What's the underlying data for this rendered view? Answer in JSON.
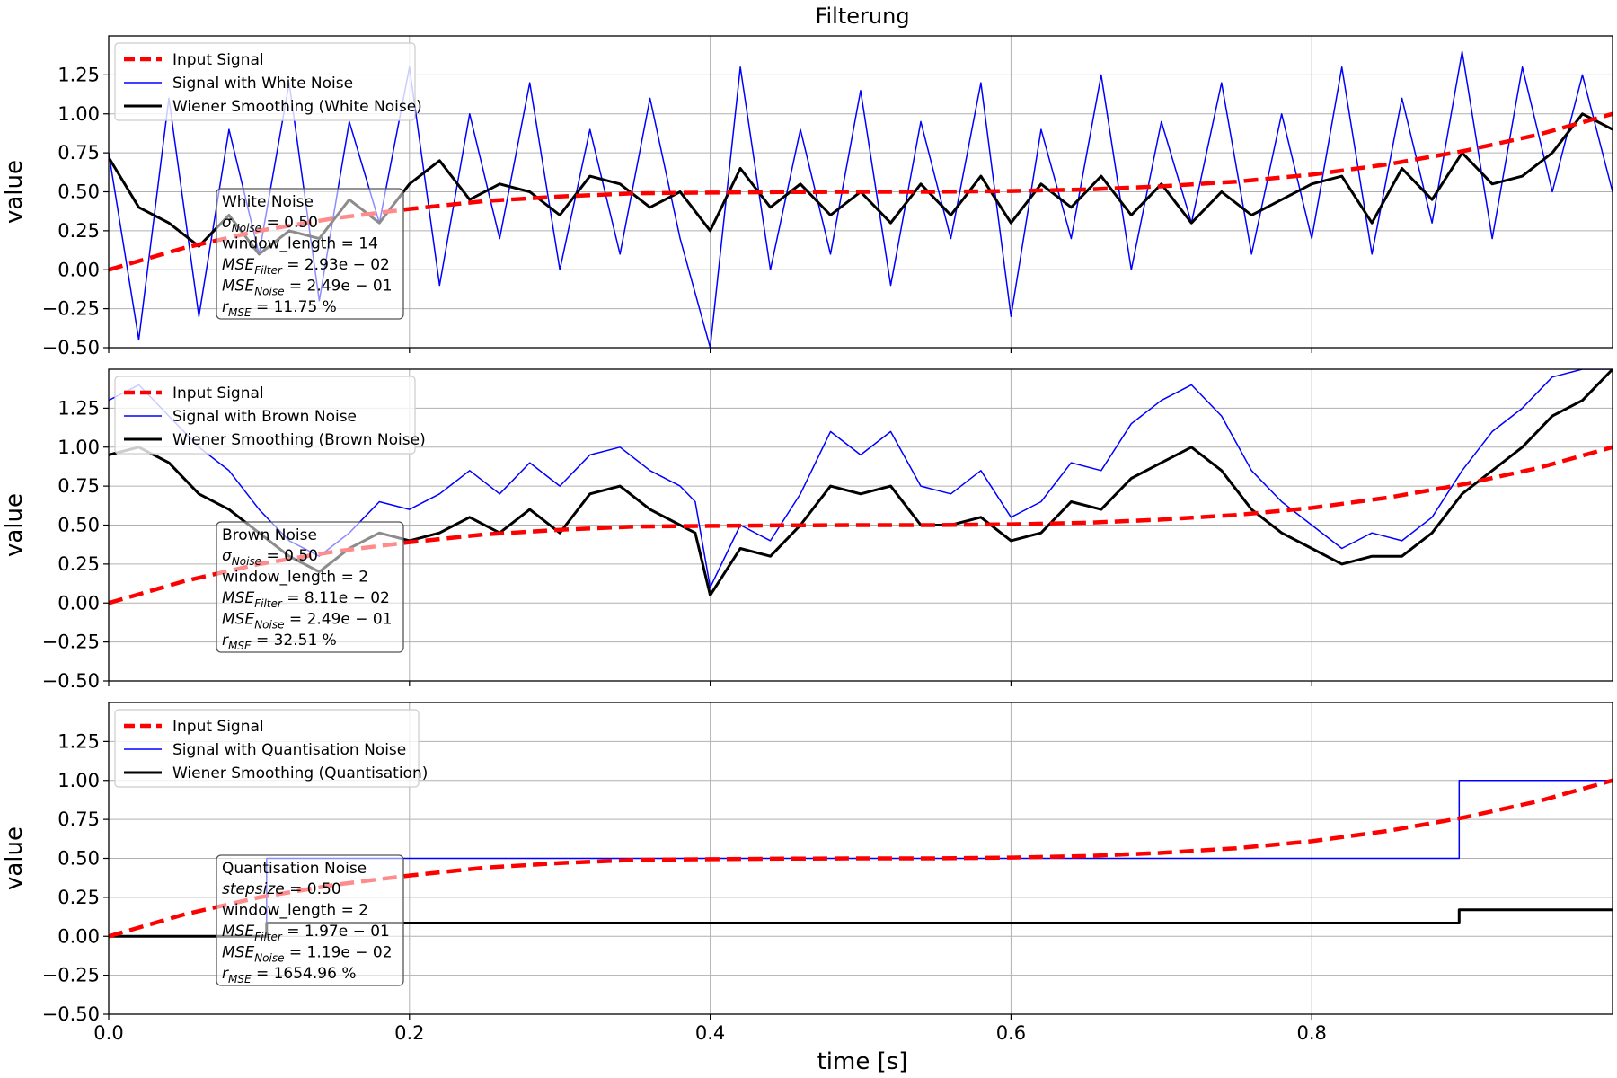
{
  "figure": {
    "title": "Filterung",
    "xlabel": "time [s]",
    "ylabel": "value"
  },
  "colors": {
    "input": "#ff0000",
    "noisy": "#0000ff",
    "filtered": "#000000",
    "grid": "#b0b0b0"
  },
  "chart_data": [
    {
      "type": "line",
      "xlim": [
        0,
        1.0
      ],
      "ylim": [
        -0.5,
        1.5
      ],
      "xticks": [
        "0.0",
        "0.2",
        "0.4",
        "0.6",
        "0.8"
      ],
      "xtick_values": [
        0,
        0.2,
        0.4,
        0.6,
        0.8
      ],
      "yticks": [
        "−0.50",
        "−0.25",
        "0.00",
        "0.25",
        "0.50",
        "0.75",
        "1.00",
        "1.25"
      ],
      "ytick_values": [
        -0.5,
        -0.25,
        0,
        0.25,
        0.5,
        0.75,
        1.0,
        1.25
      ],
      "grid": true,
      "xlabel": "",
      "ylabel": "value",
      "legend_position": "top-left",
      "legend": [
        "Input Signal",
        "Signal with White Noise",
        "Wiener Smoothing (White Noise)"
      ],
      "series": [
        {
          "name": "Input Signal",
          "style": "dashed",
          "color": "#ff0000",
          "x": [
            0,
            0.05,
            0.1,
            0.15,
            0.2,
            0.25,
            0.3,
            0.35,
            0.4,
            0.45,
            0.5,
            0.55,
            0.6,
            0.65,
            0.7,
            0.75,
            0.8,
            0.85,
            0.9,
            0.95,
            1.0
          ],
          "values": [
            0.0,
            0.14,
            0.25,
            0.33,
            0.39,
            0.44,
            0.47,
            0.49,
            0.495,
            0.498,
            0.5,
            0.5,
            0.505,
            0.515,
            0.535,
            0.565,
            0.61,
            0.675,
            0.76,
            0.865,
            1.0
          ]
        },
        {
          "name": "Signal with White Noise",
          "style": "solid",
          "color": "#0000ff",
          "x": [
            0,
            0.02,
            0.04,
            0.06,
            0.08,
            0.1,
            0.12,
            0.14,
            0.16,
            0.18,
            0.2,
            0.22,
            0.24,
            0.26,
            0.28,
            0.3,
            0.32,
            0.34,
            0.36,
            0.38,
            0.4,
            0.42,
            0.44,
            0.46,
            0.48,
            0.5,
            0.52,
            0.54,
            0.56,
            0.58,
            0.6,
            0.62,
            0.64,
            0.66,
            0.68,
            0.7,
            0.72,
            0.74,
            0.76,
            0.78,
            0.8,
            0.82,
            0.84,
            0.86,
            0.88,
            0.9,
            0.92,
            0.94,
            0.96,
            0.98,
            1.0
          ],
          "values": [
            0.75,
            -0.45,
            1.1,
            -0.3,
            0.9,
            0.1,
            1.2,
            -0.2,
            0.95,
            0.3,
            1.3,
            -0.1,
            1.0,
            0.2,
            1.2,
            0.0,
            0.9,
            0.1,
            1.1,
            0.2,
            -0.5,
            1.3,
            0.0,
            0.9,
            0.1,
            1.15,
            -0.1,
            0.95,
            0.2,
            1.2,
            -0.3,
            0.9,
            0.2,
            1.25,
            0.0,
            0.95,
            0.3,
            1.2,
            0.1,
            1.0,
            0.2,
            1.3,
            0.1,
            1.1,
            0.3,
            1.4,
            0.2,
            1.3,
            0.5,
            1.25,
            0.5
          ]
        },
        {
          "name": "Wiener Smoothing (White Noise)",
          "style": "solid",
          "color": "#000000",
          "x": [
            0,
            0.02,
            0.04,
            0.06,
            0.08,
            0.1,
            0.12,
            0.14,
            0.16,
            0.18,
            0.2,
            0.22,
            0.24,
            0.26,
            0.28,
            0.3,
            0.32,
            0.34,
            0.36,
            0.38,
            0.4,
            0.42,
            0.44,
            0.46,
            0.48,
            0.5,
            0.52,
            0.54,
            0.56,
            0.58,
            0.6,
            0.62,
            0.64,
            0.66,
            0.68,
            0.7,
            0.72,
            0.74,
            0.76,
            0.78,
            0.8,
            0.82,
            0.84,
            0.86,
            0.88,
            0.9,
            0.92,
            0.94,
            0.96,
            0.98,
            1.0
          ],
          "values": [
            0.72,
            0.4,
            0.3,
            0.15,
            0.35,
            0.1,
            0.25,
            0.2,
            0.45,
            0.3,
            0.55,
            0.7,
            0.45,
            0.55,
            0.5,
            0.35,
            0.6,
            0.55,
            0.4,
            0.5,
            0.25,
            0.65,
            0.4,
            0.55,
            0.35,
            0.5,
            0.3,
            0.55,
            0.35,
            0.6,
            0.3,
            0.55,
            0.4,
            0.6,
            0.35,
            0.55,
            0.3,
            0.5,
            0.35,
            0.45,
            0.55,
            0.6,
            0.3,
            0.65,
            0.45,
            0.75,
            0.55,
            0.6,
            0.75,
            1.0,
            0.9
          ]
        }
      ],
      "annotation": {
        "title": "White Noise",
        "lines": [
          {
            "main": "σ",
            "sub": "Noise",
            "rest": " = 0.50",
            "italic": true
          },
          {
            "main": "window_length = 14",
            "sub": "",
            "rest": "",
            "italic": false
          },
          {
            "main": "MSE",
            "sub": "Filter",
            "rest": " = 2.93e − 02",
            "italic": true
          },
          {
            "main": "MSE",
            "sub": "Noise",
            "rest": " = 2.49e − 01",
            "italic": true
          },
          {
            "main": "r",
            "sub": "MSE",
            "rest": " = 11.75 %",
            "italic": true
          }
        ]
      }
    },
    {
      "type": "line",
      "xlim": [
        0,
        1.0
      ],
      "ylim": [
        -0.5,
        1.5
      ],
      "xticks": [
        "0.0",
        "0.2",
        "0.4",
        "0.6",
        "0.8"
      ],
      "xtick_values": [
        0,
        0.2,
        0.4,
        0.6,
        0.8
      ],
      "yticks": [
        "−0.50",
        "−0.25",
        "0.00",
        "0.25",
        "0.50",
        "0.75",
        "1.00",
        "1.25"
      ],
      "ytick_values": [
        -0.5,
        -0.25,
        0,
        0.25,
        0.5,
        0.75,
        1.0,
        1.25
      ],
      "grid": true,
      "xlabel": "",
      "ylabel": "value",
      "legend_position": "top-left",
      "legend": [
        "Input Signal",
        "Signal with Brown Noise",
        "Wiener Smoothing (Brown Noise)"
      ],
      "series": [
        {
          "name": "Input Signal",
          "style": "dashed",
          "color": "#ff0000",
          "x": [
            0,
            0.05,
            0.1,
            0.15,
            0.2,
            0.25,
            0.3,
            0.35,
            0.4,
            0.45,
            0.5,
            0.55,
            0.6,
            0.65,
            0.7,
            0.75,
            0.8,
            0.85,
            0.9,
            0.95,
            1.0
          ],
          "values": [
            0.0,
            0.14,
            0.25,
            0.33,
            0.39,
            0.44,
            0.47,
            0.49,
            0.495,
            0.498,
            0.5,
            0.5,
            0.505,
            0.515,
            0.535,
            0.565,
            0.61,
            0.675,
            0.76,
            0.865,
            1.0
          ]
        },
        {
          "name": "Signal with Brown Noise",
          "style": "solid",
          "color": "#0000ff",
          "x": [
            0,
            0.02,
            0.04,
            0.06,
            0.08,
            0.1,
            0.12,
            0.14,
            0.16,
            0.18,
            0.2,
            0.22,
            0.24,
            0.26,
            0.28,
            0.3,
            0.32,
            0.34,
            0.36,
            0.38,
            0.39,
            0.4,
            0.42,
            0.44,
            0.46,
            0.48,
            0.5,
            0.52,
            0.54,
            0.56,
            0.58,
            0.6,
            0.62,
            0.64,
            0.66,
            0.68,
            0.7,
            0.72,
            0.74,
            0.76,
            0.78,
            0.8,
            0.82,
            0.84,
            0.86,
            0.88,
            0.9,
            0.92,
            0.94,
            0.96,
            0.98,
            1.0
          ],
          "values": [
            1.3,
            1.4,
            1.2,
            1.0,
            0.85,
            0.6,
            0.4,
            0.3,
            0.45,
            0.65,
            0.6,
            0.7,
            0.85,
            0.7,
            0.9,
            0.75,
            0.95,
            1.0,
            0.85,
            0.75,
            0.65,
            0.1,
            0.5,
            0.4,
            0.7,
            1.1,
            0.95,
            1.1,
            0.75,
            0.7,
            0.85,
            0.55,
            0.65,
            0.9,
            0.85,
            1.15,
            1.3,
            1.4,
            1.2,
            0.85,
            0.65,
            0.5,
            0.35,
            0.45,
            0.4,
            0.55,
            0.85,
            1.1,
            1.25,
            1.45,
            1.5,
            1.5
          ]
        },
        {
          "name": "Wiener Smoothing (Brown Noise)",
          "style": "solid",
          "color": "#000000",
          "x": [
            0,
            0.02,
            0.04,
            0.06,
            0.08,
            0.1,
            0.12,
            0.14,
            0.16,
            0.18,
            0.2,
            0.22,
            0.24,
            0.26,
            0.28,
            0.3,
            0.32,
            0.34,
            0.36,
            0.38,
            0.39,
            0.4,
            0.42,
            0.44,
            0.46,
            0.48,
            0.5,
            0.52,
            0.54,
            0.56,
            0.58,
            0.6,
            0.62,
            0.64,
            0.66,
            0.68,
            0.7,
            0.72,
            0.74,
            0.76,
            0.78,
            0.8,
            0.82,
            0.84,
            0.86,
            0.88,
            0.9,
            0.92,
            0.94,
            0.96,
            0.98,
            1.0
          ],
          "values": [
            0.95,
            1.0,
            0.9,
            0.7,
            0.6,
            0.45,
            0.3,
            0.2,
            0.35,
            0.45,
            0.4,
            0.45,
            0.55,
            0.45,
            0.6,
            0.45,
            0.7,
            0.75,
            0.6,
            0.5,
            0.45,
            0.05,
            0.35,
            0.3,
            0.5,
            0.75,
            0.7,
            0.75,
            0.5,
            0.5,
            0.55,
            0.4,
            0.45,
            0.65,
            0.6,
            0.8,
            0.9,
            1.0,
            0.85,
            0.6,
            0.45,
            0.35,
            0.25,
            0.3,
            0.3,
            0.45,
            0.7,
            0.85,
            1.0,
            1.2,
            1.3,
            1.5
          ]
        }
      ],
      "annotation": {
        "title": "Brown Noise",
        "lines": [
          {
            "main": "σ",
            "sub": "Noise",
            "rest": " = 0.50",
            "italic": true
          },
          {
            "main": "window_length = 2",
            "sub": "",
            "rest": "",
            "italic": false
          },
          {
            "main": "MSE",
            "sub": "Filter",
            "rest": " = 8.11e − 02",
            "italic": true
          },
          {
            "main": "MSE",
            "sub": "Noise",
            "rest": " = 2.49e − 01",
            "italic": true
          },
          {
            "main": "r",
            "sub": "MSE",
            "rest": " = 32.51 %",
            "italic": true
          }
        ]
      }
    },
    {
      "type": "line",
      "xlim": [
        0,
        1.0
      ],
      "ylim": [
        -0.5,
        1.5
      ],
      "xticks": [
        "0.0",
        "0.2",
        "0.4",
        "0.6",
        "0.8"
      ],
      "xtick_values": [
        0,
        0.2,
        0.4,
        0.6,
        0.8
      ],
      "yticks": [
        "−0.50",
        "−0.25",
        "0.00",
        "0.25",
        "0.50",
        "0.75",
        "1.00",
        "1.25"
      ],
      "ytick_values": [
        -0.5,
        -0.25,
        0,
        0.25,
        0.5,
        0.75,
        1.0,
        1.25
      ],
      "grid": true,
      "xlabel": "time [s]",
      "ylabel": "value",
      "legend_position": "top-left",
      "legend": [
        "Input Signal",
        "Signal with Quantisation Noise",
        "Wiener Smoothing (Quantisation)"
      ],
      "series": [
        {
          "name": "Input Signal",
          "style": "dashed",
          "color": "#ff0000",
          "x": [
            0,
            0.05,
            0.1,
            0.15,
            0.2,
            0.25,
            0.3,
            0.35,
            0.4,
            0.45,
            0.5,
            0.55,
            0.6,
            0.65,
            0.7,
            0.75,
            0.8,
            0.85,
            0.9,
            0.95,
            1.0
          ],
          "values": [
            0.0,
            0.14,
            0.25,
            0.33,
            0.39,
            0.44,
            0.47,
            0.49,
            0.495,
            0.498,
            0.5,
            0.5,
            0.505,
            0.515,
            0.535,
            0.565,
            0.61,
            0.675,
            0.76,
            0.865,
            1.0
          ]
        },
        {
          "name": "Signal with Quantisation Noise",
          "style": "solid",
          "color": "#0000ff",
          "x": [
            0,
            0.105,
            0.105,
            0.898,
            0.898,
            1.0
          ],
          "values": [
            0.0,
            0.0,
            0.5,
            0.5,
            1.0,
            1.0
          ]
        },
        {
          "name": "Wiener Smoothing (Quantisation)",
          "style": "solid",
          "color": "#000000",
          "x": [
            0,
            0.105,
            0.105,
            0.898,
            0.898,
            1.0
          ],
          "values": [
            0.0,
            0.0,
            0.085,
            0.085,
            0.17,
            0.17
          ]
        }
      ],
      "annotation": {
        "title": "Quantisation Noise",
        "lines": [
          {
            "main": "stepsize",
            "sub": "",
            "rest": " = 0.50",
            "italic": true
          },
          {
            "main": "window_length = 2",
            "sub": "",
            "rest": "",
            "italic": false
          },
          {
            "main": "MSE",
            "sub": "Filter",
            "rest": " = 1.97e − 01",
            "italic": true
          },
          {
            "main": "MSE",
            "sub": "Noise",
            "rest": " = 1.19e − 02",
            "italic": true
          },
          {
            "main": "r",
            "sub": "MSE",
            "rest": " = 1654.96 %",
            "italic": true
          }
        ]
      }
    }
  ]
}
